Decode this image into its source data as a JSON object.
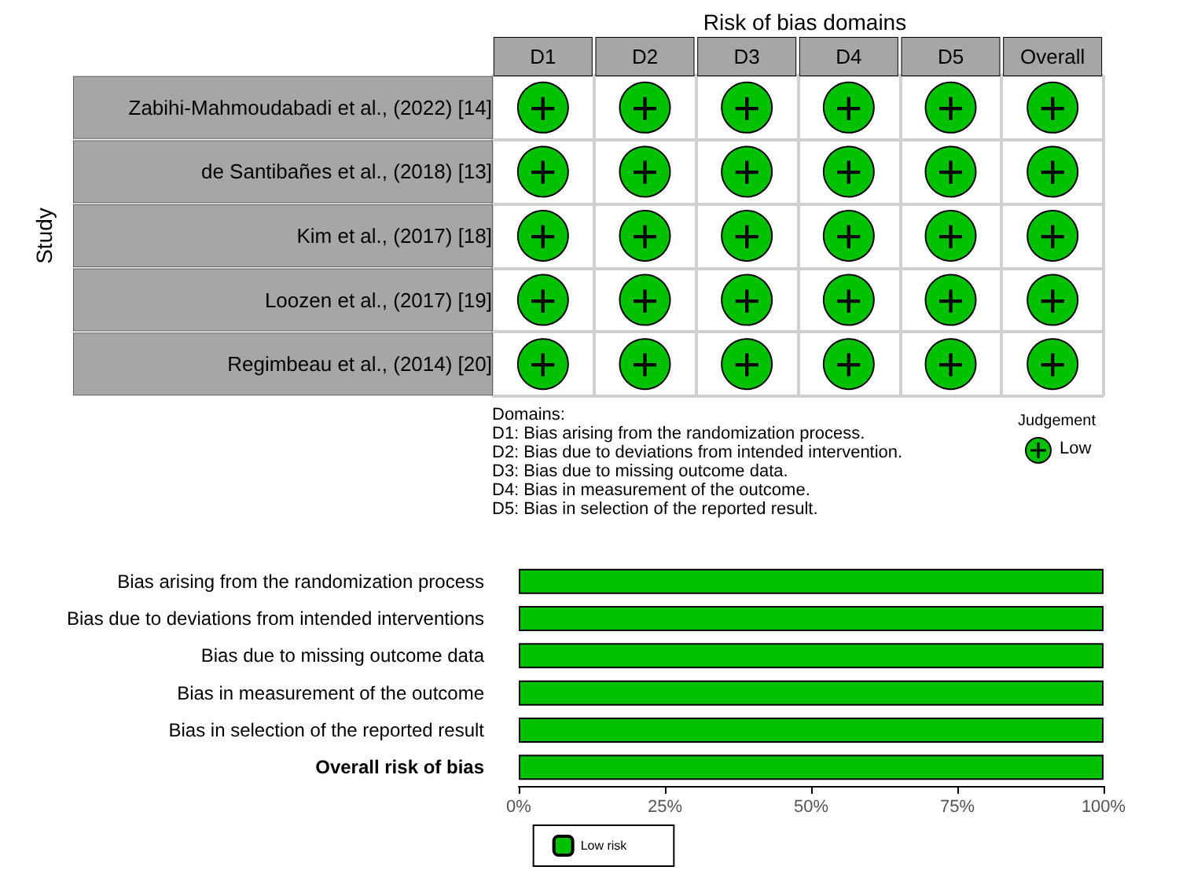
{
  "chart_data": [
    {
      "type": "heatmap",
      "title": "Risk of bias domains",
      "ylabel": "Study",
      "legend_title": "Judgement",
      "color": "#02c100",
      "categories": [
        "D1",
        "D2",
        "D3",
        "D4",
        "D5",
        "Overall"
      ],
      "y_categories": [
        "Zabihi-Mahmoudabadi et al., (2022) [14]",
        "de Santibañes et al., (2018) [13]",
        "Kim et al., (2017) [18]",
        "Loozen et al., (2017) [19]",
        "Regimbeau et al., (2014) [20]"
      ],
      "cells": [
        [
          "+",
          "+",
          "+",
          "+",
          "+",
          "+"
        ],
        [
          "+",
          "+",
          "+",
          "+",
          "+",
          "+"
        ],
        [
          "+",
          "+",
          "+",
          "+",
          "+",
          "+"
        ],
        [
          "+",
          "+",
          "+",
          "+",
          "+",
          "+"
        ],
        [
          "+",
          "+",
          "+",
          "+",
          "+",
          "+"
        ]
      ],
      "annotations": [
        "Domains:",
        "D1: Bias arising from the randomization process.",
        "D2: Bias due to deviations from intended intervention.",
        "D3: Bias due to missing outcome data.",
        "D4: Bias in measurement of the outcome.",
        "D5: Bias in selection of the reported result.",
        "Low"
      ]
    },
    {
      "type": "bar",
      "orientation": "horizontal",
      "legend": "bottom",
      "grid": false,
      "categories": [
        "Bias arising from the randomization process",
        "Bias due to deviations from intended interventions",
        "Bias due to missing outcome data",
        "Bias in measurement of the outcome",
        "Bias in selection of the reported result",
        "Overall risk of bias"
      ],
      "series": [
        {
          "name": "Low risk",
          "color": "#02c100",
          "values": [
            100,
            100,
            100,
            100,
            100,
            100
          ]
        }
      ],
      "xlim": [
        0,
        100
      ],
      "xticks": [
        {
          "value": 0,
          "label": "0%"
        },
        {
          "value": 25,
          "label": "25%"
        },
        {
          "value": 50,
          "label": "50%"
        },
        {
          "value": 75,
          "label": "75%"
        },
        {
          "value": 100,
          "label": "100%"
        }
      ]
    }
  ]
}
